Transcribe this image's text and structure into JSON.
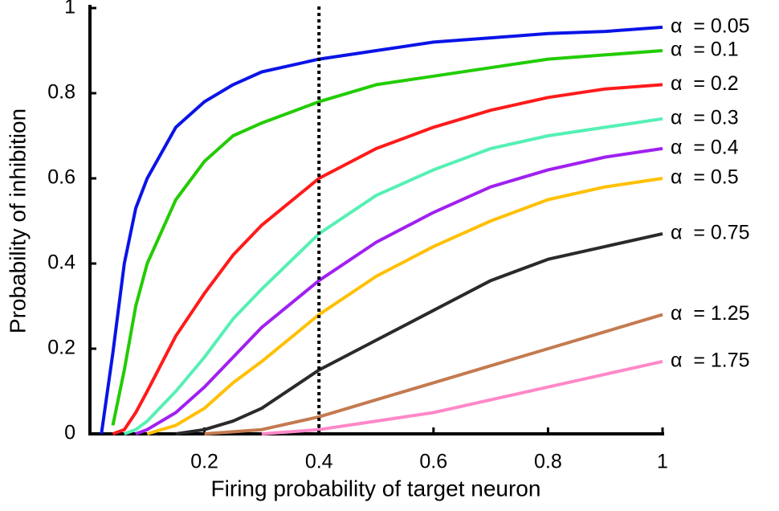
{
  "chart_data": {
    "type": "line",
    "x_label": "Firing probability of target neuron",
    "y_label": "Probability of inhibition",
    "x": [
      0.02,
      0.04,
      0.06,
      0.08,
      0.1,
      0.15,
      0.2,
      0.25,
      0.3,
      0.4,
      0.5,
      0.6,
      0.7,
      0.8,
      0.9,
      1.0
    ],
    "series": [
      {
        "name": "α  = 0.05",
        "color": "#0a14e6",
        "values": [
          0,
          0.19,
          0.4,
          0.53,
          0.6,
          0.72,
          0.78,
          0.82,
          0.85,
          0.88,
          0.9,
          0.92,
          0.93,
          0.94,
          0.945,
          0.955
        ]
      },
      {
        "name": "α  = 0.1",
        "color": "#22cc00",
        "values": [
          null,
          0.02,
          0.15,
          0.3,
          0.4,
          0.55,
          0.64,
          0.7,
          0.73,
          0.78,
          0.82,
          0.84,
          0.86,
          0.88,
          0.89,
          0.9
        ]
      },
      {
        "name": "α  = 0.2",
        "color": "#ff1a1a",
        "values": [
          null,
          0,
          0.01,
          0.05,
          0.1,
          0.23,
          0.33,
          0.42,
          0.49,
          0.6,
          0.67,
          0.72,
          0.76,
          0.79,
          0.81,
          0.82
        ]
      },
      {
        "name": "α  = 0.3",
        "color": "#55f0b4",
        "values": [
          null,
          null,
          0,
          0.01,
          0.03,
          0.1,
          0.18,
          0.27,
          0.34,
          0.47,
          0.56,
          0.62,
          0.67,
          0.7,
          0.72,
          0.74
        ]
      },
      {
        "name": "α  = 0.4",
        "color": "#a020f0",
        "values": [
          null,
          null,
          null,
          0,
          0.01,
          0.05,
          0.11,
          0.18,
          0.25,
          0.36,
          0.45,
          0.52,
          0.58,
          0.62,
          0.65,
          0.67
        ]
      },
      {
        "name": "α  = 0.5",
        "color": "#ffc000",
        "values": [
          null,
          null,
          null,
          null,
          0,
          0.02,
          0.06,
          0.12,
          0.17,
          0.28,
          0.37,
          0.44,
          0.5,
          0.55,
          0.58,
          0.6
        ]
      },
      {
        "name": "α  = 0.75",
        "color": "#2a2a2a",
        "values": [
          null,
          null,
          null,
          null,
          null,
          0,
          0.01,
          0.03,
          0.06,
          0.15,
          0.22,
          0.29,
          0.36,
          0.41,
          0.44,
          0.47
        ]
      },
      {
        "name": "α  = 1.25",
        "color": "#c47a50",
        "values": [
          null,
          null,
          null,
          null,
          null,
          null,
          0,
          0.005,
          0.01,
          0.04,
          0.08,
          0.12,
          0.16,
          0.2,
          0.24,
          0.28
        ]
      },
      {
        "name": "α  = 1.75",
        "color": "#ff88c8",
        "values": [
          null,
          null,
          null,
          null,
          null,
          null,
          null,
          null,
          0,
          0.01,
          0.03,
          0.05,
          0.08,
          0.11,
          0.14,
          0.17
        ]
      }
    ],
    "vline": 0.4,
    "xlim": [
      0,
      1
    ],
    "ylim": [
      0,
      1
    ],
    "xticks": [
      0.2,
      0.4,
      0.6,
      0.8,
      1
    ],
    "yticks": [
      0,
      0.2,
      0.4,
      0.6,
      0.8,
      1
    ]
  }
}
